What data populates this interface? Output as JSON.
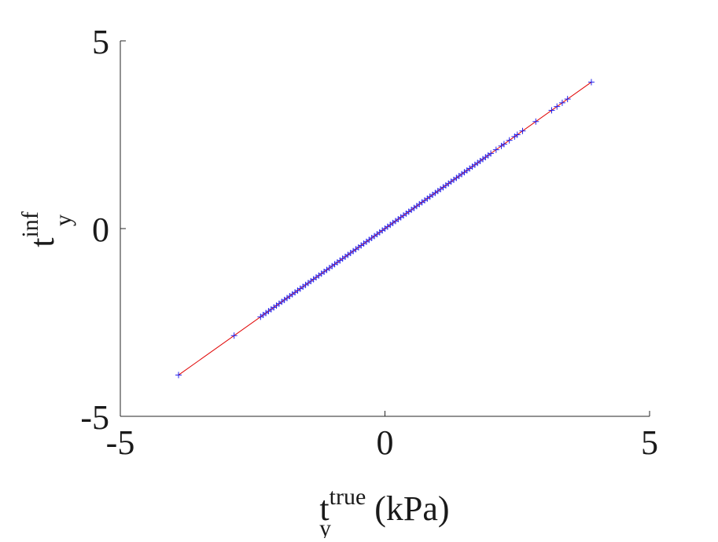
{
  "chart_data": {
    "type": "scatter",
    "title": "",
    "xlabel": {
      "base": "t",
      "superscript": "true",
      "subscript": "y",
      "suffix": " (kPa)"
    },
    "ylabel": {
      "base": "t",
      "superscript": "inf",
      "subscript": "y",
      "suffix": ""
    },
    "xlim": [
      -5,
      5
    ],
    "ylim": [
      -5,
      5
    ],
    "xticks": [
      -5,
      0,
      5
    ],
    "yticks": [
      -5,
      0,
      5
    ],
    "xtick_labels": [
      "-5",
      "0",
      "5"
    ],
    "ytick_labels": [
      "-5",
      "0",
      "5"
    ],
    "grid": false,
    "marker_color": "#2222ee",
    "line_color": "#e00000",
    "reference_line": {
      "x": [
        -3.9,
        3.9
      ],
      "y": [
        -3.9,
        3.9
      ]
    },
    "series": [
      {
        "marker": "+",
        "x": [
          -3.9,
          -2.85,
          -2.35,
          -2.3,
          -2.25,
          -2.2,
          -2.15,
          -2.1,
          -2.05,
          -2.0,
          -1.95,
          -1.9,
          -1.85,
          -1.8,
          -1.75,
          -1.7,
          -1.65,
          -1.6,
          -1.55,
          -1.5,
          -1.45,
          -1.4,
          -1.35,
          -1.3,
          -1.25,
          -1.2,
          -1.15,
          -1.1,
          -1.05,
          -1.0,
          -0.95,
          -0.9,
          -0.85,
          -0.8,
          -0.75,
          -0.7,
          -0.65,
          -0.6,
          -0.55,
          -0.5,
          -0.45,
          -0.4,
          -0.35,
          -0.3,
          -0.25,
          -0.2,
          -0.15,
          -0.1,
          -0.05,
          0.0,
          0.05,
          0.1,
          0.15,
          0.2,
          0.25,
          0.3,
          0.35,
          0.4,
          0.45,
          0.5,
          0.55,
          0.6,
          0.65,
          0.7,
          0.75,
          0.8,
          0.85,
          0.9,
          0.95,
          1.0,
          1.05,
          1.1,
          1.15,
          1.2,
          1.25,
          1.3,
          1.35,
          1.4,
          1.45,
          1.5,
          1.55,
          1.6,
          1.65,
          1.7,
          1.75,
          1.8,
          1.85,
          1.9,
          1.95,
          2.0,
          2.1,
          2.2,
          2.25,
          2.35,
          2.45,
          2.5,
          2.6,
          2.85,
          3.15,
          3.25,
          3.35,
          3.45,
          3.9
        ],
        "y": [
          -3.9,
          -2.85,
          -2.35,
          -2.3,
          -2.25,
          -2.2,
          -2.15,
          -2.1,
          -2.05,
          -2.0,
          -1.95,
          -1.9,
          -1.85,
          -1.8,
          -1.75,
          -1.7,
          -1.65,
          -1.6,
          -1.55,
          -1.5,
          -1.45,
          -1.4,
          -1.35,
          -1.3,
          -1.25,
          -1.2,
          -1.15,
          -1.1,
          -1.05,
          -1.0,
          -0.95,
          -0.9,
          -0.85,
          -0.8,
          -0.75,
          -0.7,
          -0.65,
          -0.6,
          -0.55,
          -0.5,
          -0.45,
          -0.4,
          -0.35,
          -0.3,
          -0.25,
          -0.2,
          -0.15,
          -0.1,
          -0.05,
          0.0,
          0.05,
          0.1,
          0.15,
          0.2,
          0.25,
          0.3,
          0.35,
          0.4,
          0.45,
          0.5,
          0.55,
          0.6,
          0.65,
          0.7,
          0.75,
          0.8,
          0.85,
          0.9,
          0.95,
          1.0,
          1.05,
          1.1,
          1.15,
          1.2,
          1.25,
          1.3,
          1.35,
          1.4,
          1.45,
          1.5,
          1.55,
          1.6,
          1.65,
          1.7,
          1.75,
          1.8,
          1.85,
          1.9,
          1.95,
          2.0,
          2.1,
          2.2,
          2.25,
          2.35,
          2.45,
          2.5,
          2.6,
          2.85,
          3.15,
          3.25,
          3.35,
          3.45,
          3.9
        ]
      }
    ]
  }
}
